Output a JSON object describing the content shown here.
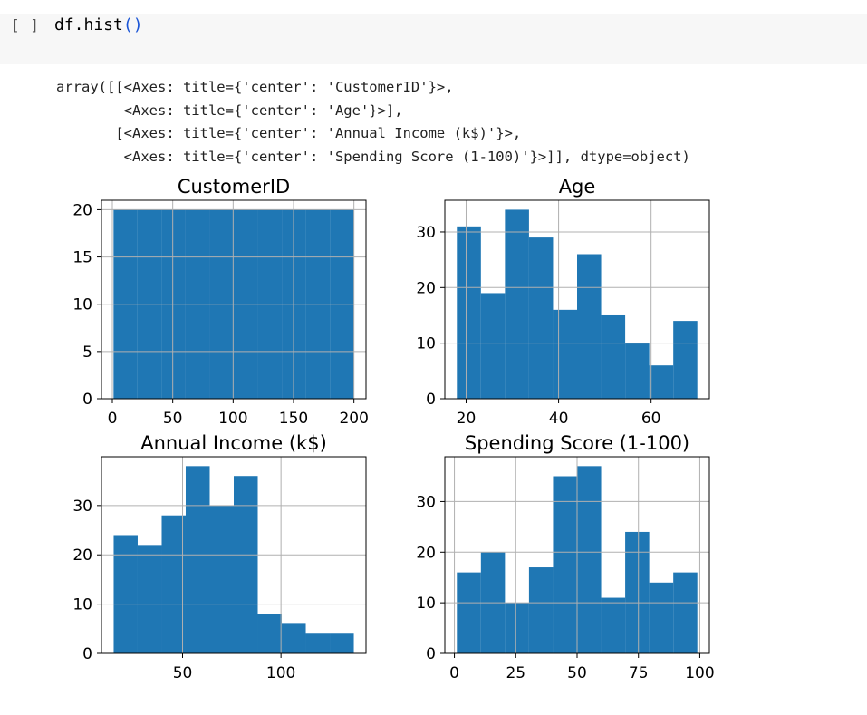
{
  "cell": {
    "prompt": "[ ]",
    "code_prefix": "df.hist",
    "code_paren": "()"
  },
  "output_lines": [
    "array([[<Axes: title={'center': 'CustomerID'}>,",
    "        <Axes: title={'center': 'Age'}>],",
    "       [<Axes: title={'center': 'Annual Income (k$)'}>,",
    "        <Axes: title={'center': 'Spending Score (1-100)'}>]], dtype=object)"
  ],
  "colors": {
    "bar": "#1f77b4",
    "grid": "#b0b0b0",
    "axes": "#000000"
  },
  "chart_data": [
    {
      "type": "bar",
      "title": "CustomerID",
      "xlabel": "",
      "ylabel": "",
      "xlim": [
        -9,
        210
      ],
      "ylim": [
        0,
        21
      ],
      "bin_edges": [
        1,
        20.9,
        40.8,
        60.7,
        80.6,
        100.5,
        120.4,
        140.3,
        160.2,
        180.1,
        200
      ],
      "values": [
        20,
        20,
        20,
        20,
        20,
        20,
        20,
        20,
        20,
        20
      ],
      "xticks": [
        0,
        50,
        100,
        150,
        200
      ],
      "xtick_labels": [
        "0",
        "50",
        "100",
        "150",
        "200"
      ],
      "yticks": [
        0,
        5,
        10,
        15,
        20
      ],
      "ytick_labels": [
        "0",
        "5",
        "10",
        "15",
        "20"
      ],
      "grid": true
    },
    {
      "type": "bar",
      "title": "Age",
      "xlabel": "",
      "ylabel": "",
      "xlim": [
        15.4,
        72.6
      ],
      "ylim": [
        0,
        35.7
      ],
      "bin_edges": [
        18,
        23.2,
        28.4,
        33.6,
        38.8,
        44,
        49.2,
        54.4,
        59.6,
        64.8,
        70
      ],
      "values": [
        31,
        19,
        34,
        29,
        16,
        26,
        15,
        10,
        6,
        14
      ],
      "xticks": [
        20,
        40,
        60
      ],
      "xtick_labels": [
        "20",
        "40",
        "60"
      ],
      "yticks": [
        0,
        10,
        20,
        30
      ],
      "ytick_labels": [
        "0",
        "10",
        "20",
        "30"
      ],
      "grid": true
    },
    {
      "type": "bar",
      "title": "Annual Income (k$)",
      "xlabel": "",
      "ylabel": "",
      "xlim": [
        8.8,
        143.2
      ],
      "ylim": [
        0,
        39.9
      ],
      "bin_edges": [
        15,
        27.2,
        39.4,
        51.6,
        63.8,
        76,
        88.2,
        100.4,
        112.6,
        124.8,
        137
      ],
      "values": [
        24,
        22,
        28,
        38,
        30,
        36,
        8,
        6,
        4,
        4
      ],
      "xticks": [
        50,
        100
      ],
      "xtick_labels": [
        "50",
        "100"
      ],
      "yticks": [
        0,
        10,
        20,
        30
      ],
      "ytick_labels": [
        "0",
        "10",
        "20",
        "30"
      ],
      "grid": true
    },
    {
      "type": "bar",
      "title": "Spending Score (1-100)",
      "xlabel": "",
      "ylabel": "",
      "xlim": [
        -3.9,
        103.9
      ],
      "ylim": [
        0,
        38.85
      ],
      "bin_edges": [
        1,
        10.8,
        20.6,
        30.4,
        40.2,
        50,
        59.8,
        69.6,
        79.4,
        89.2,
        99
      ],
      "values": [
        16,
        20,
        10,
        17,
        35,
        37,
        11,
        24,
        14,
        16
      ],
      "xticks": [
        0,
        25,
        50,
        75,
        100
      ],
      "xtick_labels": [
        "0",
        "25",
        "50",
        "75",
        "100"
      ],
      "yticks": [
        0,
        10,
        20,
        30
      ],
      "ytick_labels": [
        "0",
        "10",
        "20",
        "30"
      ],
      "grid": true
    }
  ]
}
